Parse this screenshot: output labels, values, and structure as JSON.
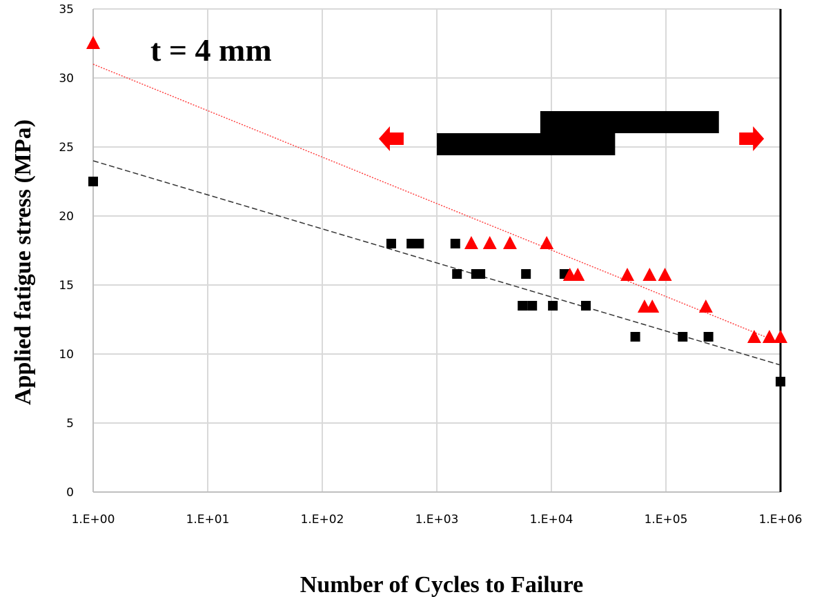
{
  "chart_data": {
    "type": "scatter",
    "title": "",
    "annotation": "t = 4 mm",
    "xlabel": "Number of Cycles to Failure",
    "ylabel": "Applied fatigue stress (MPa)",
    "xscale": "log",
    "xlim": [
      1,
      1000000
    ],
    "ylim": [
      0,
      35
    ],
    "grid": true,
    "xticks": [
      "1.E+00",
      "1.E+01",
      "1.E+02",
      "1.E+03",
      "1.E+04",
      "1.E+05",
      "1.E+06"
    ],
    "yticks": [
      "0",
      "5",
      "10",
      "15",
      "20",
      "25",
      "30",
      "35"
    ],
    "series": [
      {
        "name": "black squares",
        "marker": "square",
        "color": "#000000",
        "x": [
          1,
          400,
          600,
          700,
          1450,
          1500,
          2200,
          2400,
          6000,
          13000,
          5600,
          6800,
          10300,
          20000,
          54000,
          140000,
          235000,
          1000000
        ],
        "y": [
          22.5,
          18,
          18,
          18,
          18,
          15.8,
          15.8,
          15.8,
          15.8,
          15.8,
          13.5,
          13.5,
          13.5,
          13.5,
          11.25,
          11.25,
          11.25,
          8
        ]
      },
      {
        "name": "red triangles",
        "marker": "triangle",
        "color": "#ff0000",
        "x": [
          1,
          2000,
          2900,
          4350,
          9100,
          14500,
          17000,
          46000,
          72000,
          98000,
          65000,
          76000,
          223000,
          590000,
          800000,
          1000000
        ],
        "y": [
          32.5,
          18,
          18,
          18,
          18,
          15.7,
          15.7,
          15.7,
          15.7,
          15.7,
          13.4,
          13.4,
          13.4,
          11.2,
          11.2,
          11.2
        ]
      }
    ],
    "trendlines": [
      {
        "name": "black trend",
        "color": "#333333",
        "style": "dashed",
        "x": [
          1,
          1000000
        ],
        "y": [
          24,
          9.2
        ]
      },
      {
        "name": "red trend",
        "color": "#ff4040",
        "style": "dotted",
        "x": [
          1,
          1000000
        ],
        "y": [
          31,
          10.8
        ]
      }
    ],
    "bars": [
      {
        "name": "lower range bar",
        "x": [
          1000,
          36000
        ],
        "y": [
          24.4,
          26.0
        ]
      },
      {
        "name": "upper range bar",
        "x": [
          8000,
          290000
        ],
        "y": [
          26.0,
          27.6
        ]
      }
    ],
    "arrows": [
      {
        "name": "left arrow",
        "direction": "left",
        "x": 400,
        "y": 25.6,
        "color": "#ff0000"
      },
      {
        "name": "right arrow",
        "direction": "right",
        "x": 560000,
        "y": 25.6,
        "color": "#ff0000"
      }
    ]
  }
}
